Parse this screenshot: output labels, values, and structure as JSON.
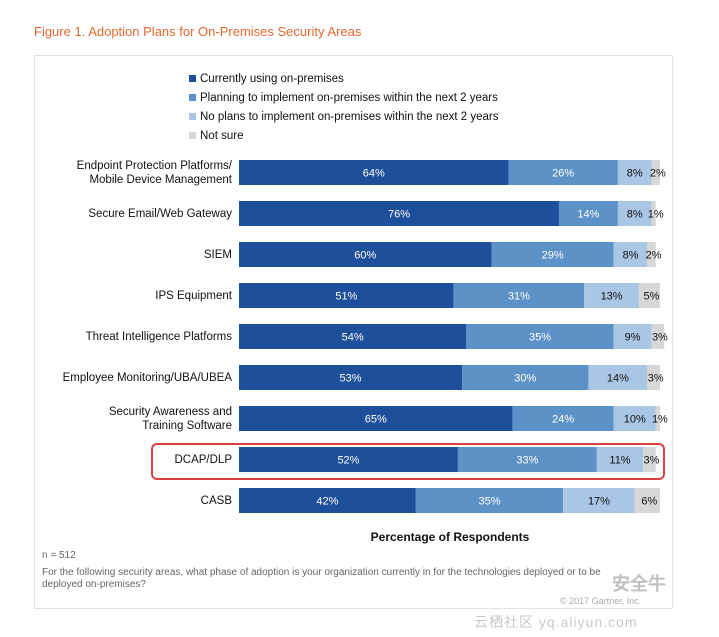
{
  "figure_title": "Figure 1. Adoption Plans for On-Premises Security Areas",
  "colors": {
    "currently": "#1e4f9a",
    "planning": "#5d92c9",
    "no_plans": "#a9c6e4",
    "not_sure": "#d7d7d7",
    "highlight": "#d9413f",
    "title": "#e5692d"
  },
  "chart_data": {
    "type": "bar",
    "orientation": "horizontal",
    "stacked": true,
    "categories": [
      "Endpoint Protection Platforms/\nMobile Device Management",
      "Secure Email/Web Gateway",
      "SIEM",
      "IPS Equipment",
      "Threat Intelligence Platforms",
      "Employee Monitoring/UBA/UBEA",
      "Security Awareness and\nTraining Software",
      "DCAP/DLP",
      "CASB"
    ],
    "series": [
      {
        "name": "Currently using on-premises",
        "values": [
          64,
          76,
          60,
          51,
          54,
          53,
          65,
          52,
          42
        ]
      },
      {
        "name": "Planning to implement on-premises within the next 2 years",
        "values": [
          26,
          14,
          29,
          31,
          35,
          30,
          24,
          33,
          35
        ]
      },
      {
        "name": "No plans to implement on-premises within the next 2 years",
        "values": [
          8,
          8,
          8,
          13,
          9,
          14,
          10,
          11,
          17
        ]
      },
      {
        "name": "Not sure",
        "values": [
          2,
          1,
          2,
          5,
          3,
          3,
          1,
          3,
          6
        ]
      }
    ],
    "value_suffix": "%",
    "xlabel": "Percentage of Respondents",
    "xlim": [
      0,
      100
    ],
    "highlighted_category": "DCAP/DLP",
    "legend_position": "top"
  },
  "footnote": {
    "n": "n = 512",
    "question": "For the following security areas, what phase of adoption is your organization currently in for the technologies deployed or to be deployed on-premises?"
  },
  "watermark": {
    "copyright": "© 2017 Gartner, Inc.",
    "site": "云栖社区 yq.aliyun.com",
    "brand": "安全牛"
  }
}
